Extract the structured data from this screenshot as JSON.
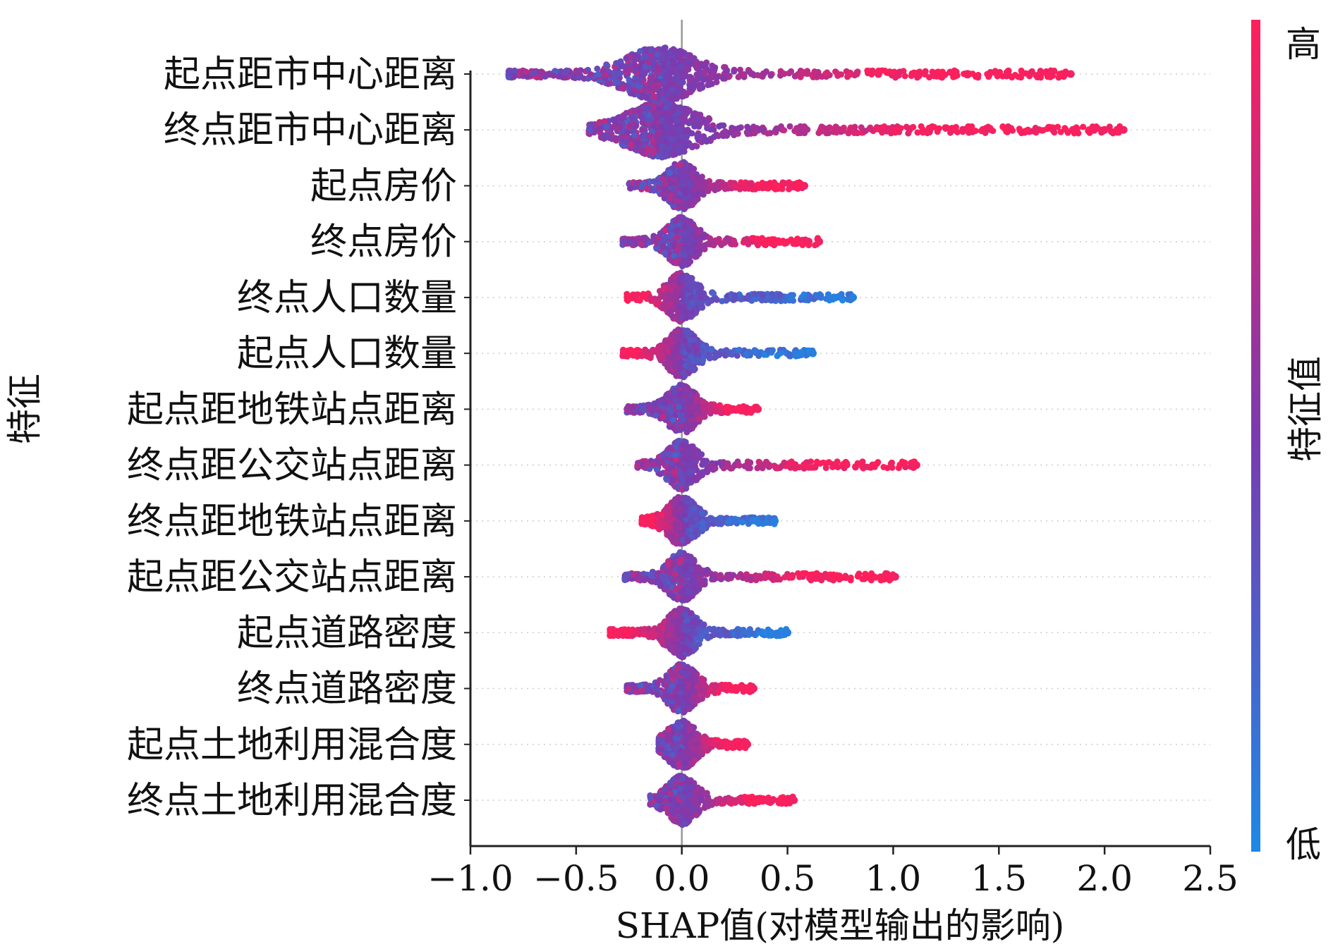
{
  "chart_data": {
    "type": "scatter",
    "subtype": "shap-beeswarm",
    "xlabel": "SHAP值(对模型输出的影响)",
    "ylabel": "特征",
    "xlim": [
      -1.0,
      2.5
    ],
    "xticks": [
      -1.0,
      -0.5,
      0.0,
      0.5,
      1.0,
      1.5,
      2.0,
      2.5
    ],
    "xtick_labels": [
      "−1.0",
      "−0.5",
      "0.0",
      "0.5",
      "1.0",
      "1.5",
      "2.0",
      "2.5"
    ],
    "zero_line": 0.0,
    "grid": false,
    "row_guides": "dotted",
    "colorbar": {
      "label": "特征值",
      "high_label": "高",
      "low_label": "低",
      "high_color": "#ff1f5b",
      "low_color": "#1e88e5"
    },
    "features": [
      {
        "name": "起点距市中心距离",
        "range": [
          -0.82,
          1.84
        ],
        "outliers": [
          0.93,
          1.75,
          1.84
        ],
        "red_tail": "right"
      },
      {
        "name": "终点距市中心距离",
        "range": [
          -0.44,
          2.09
        ],
        "outliers": [
          1.85,
          1.95,
          2.0,
          2.09
        ],
        "red_tail": "right"
      },
      {
        "name": "起点房价",
        "range": [
          -0.25,
          0.58
        ],
        "outliers": [
          0.52,
          0.58
        ],
        "red_tail": "right"
      },
      {
        "name": "终点房价",
        "range": [
          -0.28,
          0.65
        ],
        "outliers": [
          0.6,
          0.65
        ],
        "red_tail": "right"
      },
      {
        "name": "终点人口数量",
        "range": [
          -0.26,
          0.81
        ],
        "outliers": [
          0.72,
          0.81
        ],
        "red_tail": "left"
      },
      {
        "name": "起点人口数量",
        "range": [
          -0.28,
          0.62
        ],
        "outliers": [
          0.56,
          0.62
        ],
        "red_tail": "left"
      },
      {
        "name": "起点距地铁站点距离",
        "range": [
          -0.26,
          0.36
        ],
        "outliers": [
          0.36
        ],
        "red_tail": "right"
      },
      {
        "name": "终点距公交站点距离",
        "range": [
          -0.21,
          1.11
        ],
        "outliers": [
          0.58,
          1.11
        ],
        "red_tail": "right"
      },
      {
        "name": "终点距地铁站点距离",
        "range": [
          -0.19,
          0.44
        ],
        "outliers": [
          0.35,
          0.44
        ],
        "red_tail": "left"
      },
      {
        "name": "起点距公交站点距离",
        "range": [
          -0.27,
          1.01
        ],
        "outliers": [
          0.52,
          1.01
        ],
        "red_tail": "right"
      },
      {
        "name": "起点道路密度",
        "range": [
          -0.34,
          0.5
        ],
        "outliers": [
          0.42,
          0.5
        ],
        "red_tail": "left"
      },
      {
        "name": "终点道路密度",
        "range": [
          -0.26,
          0.34
        ],
        "outliers": [
          0.34
        ],
        "red_tail": "right"
      },
      {
        "name": "起点土地利用混合度",
        "range": [
          -0.11,
          0.31
        ],
        "outliers": [
          0.31
        ],
        "red_tail": "right"
      },
      {
        "name": "终点土地利用混合度",
        "range": [
          -0.15,
          0.53
        ],
        "outliers": [
          0.4,
          0.53
        ],
        "red_tail": "right"
      }
    ]
  }
}
